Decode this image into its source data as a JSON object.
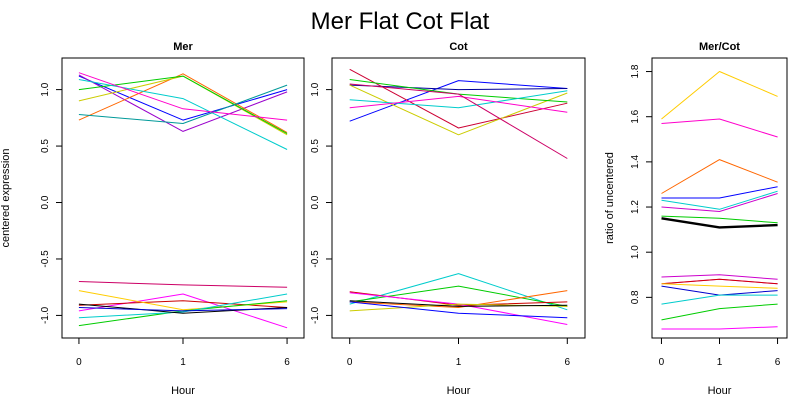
{
  "figure": {
    "title": "Mer Flat Cot Flat"
  },
  "chart_data": [
    {
      "type": "line",
      "title": "Mer",
      "xlabel": "Hour",
      "ylabel": "centered expression",
      "categories": [
        "0",
        "1",
        "6"
      ],
      "ylim": [
        -1.2,
        1.28
      ],
      "yticks": [
        -1.0,
        -0.5,
        0.0,
        0.5,
        1.0
      ],
      "ytick_labels": [
        "-1.0",
        "-0.5",
        "0.0",
        "0.5",
        "1.0"
      ],
      "series": [
        {
          "color": "#0000ff",
          "values": [
            1.12,
            0.73,
            1.0
          ]
        },
        {
          "color": "#9900cc",
          "values": [
            1.13,
            0.63,
            0.98
          ]
        },
        {
          "color": "#ff6600",
          "values": [
            0.73,
            1.14,
            0.62
          ]
        },
        {
          "color": "#cccc00",
          "values": [
            0.9,
            1.12,
            0.6
          ]
        },
        {
          "color": "#00cc00",
          "values": [
            1.0,
            1.12,
            0.61
          ]
        },
        {
          "color": "#00cccc",
          "values": [
            1.09,
            0.92,
            0.47
          ]
        },
        {
          "color": "#009999",
          "values": [
            0.78,
            0.7,
            1.04
          ]
        },
        {
          "color": "#ff00cc",
          "values": [
            1.15,
            0.83,
            0.73
          ]
        },
        {
          "color": "#cc0066",
          "values": [
            -0.7,
            -0.73,
            -0.75
          ]
        },
        {
          "color": "#ff00ff",
          "values": [
            -0.96,
            -0.81,
            -1.11
          ]
        },
        {
          "color": "#cc0000",
          "values": [
            -0.91,
            -0.87,
            -0.93
          ]
        },
        {
          "color": "#ffcc00",
          "values": [
            -0.78,
            -0.95,
            -0.88
          ]
        },
        {
          "color": "#00cc00",
          "values": [
            -1.09,
            -0.96,
            -0.87
          ]
        },
        {
          "color": "#00cccc",
          "values": [
            -1.02,
            -0.97,
            -0.81
          ]
        },
        {
          "color": "#000000",
          "values": [
            -0.9,
            -0.98,
            -0.93
          ]
        },
        {
          "color": "#0000cc",
          "values": [
            -0.93,
            -0.96,
            -0.94
          ]
        }
      ]
    },
    {
      "type": "line",
      "title": "Cot",
      "xlabel": "Hour",
      "categories": [
        "0",
        "1",
        "6"
      ],
      "ylim": [
        -1.2,
        1.28
      ],
      "yticks": [
        -1.0,
        -0.5,
        0.0,
        0.5,
        1.0
      ],
      "ytick_labels": [
        "-1.0",
        "-0.5",
        "0.0",
        "0.5",
        "1.0"
      ],
      "series": [
        {
          "color": "#0000ff",
          "values": [
            0.72,
            1.08,
            1.01
          ]
        },
        {
          "color": "#000099",
          "values": [
            1.04,
            1.0,
            1.01
          ]
        },
        {
          "color": "#cc0033",
          "values": [
            1.18,
            0.66,
            0.88
          ]
        },
        {
          "color": "#cccc00",
          "values": [
            1.04,
            0.6,
            0.97
          ]
        },
        {
          "color": "#00cc00",
          "values": [
            1.09,
            0.96,
            0.89
          ]
        },
        {
          "color": "#00cccc",
          "values": [
            0.91,
            0.84,
            0.99
          ]
        },
        {
          "color": "#ff00cc",
          "values": [
            0.84,
            0.94,
            0.8
          ]
        },
        {
          "color": "#cc0066",
          "values": [
            1.05,
            0.96,
            0.39
          ]
        },
        {
          "color": "#00cccc",
          "values": [
            -0.9,
            -0.63,
            -0.95
          ]
        },
        {
          "color": "#00cc00",
          "values": [
            -0.88,
            -0.74,
            -0.92
          ]
        },
        {
          "color": "#ff6600",
          "values": [
            -0.88,
            -0.93,
            -0.78
          ]
        },
        {
          "color": "#cc0000",
          "values": [
            -0.79,
            -0.91,
            -0.88
          ]
        },
        {
          "color": "#ff00ff",
          "values": [
            -0.8,
            -0.9,
            -1.08
          ]
        },
        {
          "color": "#cccc00",
          "values": [
            -0.96,
            -0.9,
            -0.92
          ]
        },
        {
          "color": "#0000ff",
          "values": [
            -0.88,
            -0.98,
            -1.02
          ]
        },
        {
          "color": "#000000",
          "values": [
            -0.87,
            -0.92,
            -0.91
          ]
        }
      ]
    },
    {
      "type": "line",
      "title": "Mer/Cot",
      "xlabel": "Hour",
      "ylabel": "ratio of uncentered",
      "categories": [
        "0",
        "1",
        "6"
      ],
      "ylim": [
        0.62,
        1.86
      ],
      "yticks": [
        0.8,
        1.0,
        1.2,
        1.4,
        1.6,
        1.8
      ],
      "ytick_labels": [
        "0.8",
        "1.0",
        "1.2",
        "1.4",
        "1.6",
        "1.8"
      ],
      "series": [
        {
          "color": "#ffcc00",
          "values": [
            1.59,
            1.8,
            1.69
          ]
        },
        {
          "color": "#ff00cc",
          "values": [
            1.57,
            1.59,
            1.51
          ]
        },
        {
          "color": "#ff6600",
          "values": [
            1.26,
            1.41,
            1.31
          ]
        },
        {
          "color": "#0000ff",
          "values": [
            1.24,
            1.24,
            1.29
          ]
        },
        {
          "color": "#00cccc",
          "values": [
            1.23,
            1.19,
            1.27
          ]
        },
        {
          "color": "#cc00cc",
          "values": [
            1.2,
            1.18,
            1.26
          ]
        },
        {
          "color": "#00cc00",
          "values": [
            1.16,
            1.15,
            1.13
          ]
        },
        {
          "color": "#000000",
          "width": 2.4,
          "values": [
            1.15,
            1.11,
            1.12
          ]
        },
        {
          "color": "#cc00cc",
          "values": [
            0.89,
            0.9,
            0.88
          ]
        },
        {
          "color": "#ff00ff",
          "values": [
            0.86,
            0.88,
            0.86
          ]
        },
        {
          "color": "#cc0000",
          "values": [
            0.86,
            0.88,
            0.86
          ]
        },
        {
          "color": "#ffcc00",
          "values": [
            0.86,
            0.85,
            0.84
          ]
        },
        {
          "color": "#0000cc",
          "values": [
            0.85,
            0.81,
            0.83
          ]
        },
        {
          "color": "#00cccc",
          "values": [
            0.77,
            0.81,
            0.81
          ]
        },
        {
          "color": "#00cc00",
          "values": [
            0.7,
            0.75,
            0.77
          ]
        },
        {
          "color": "#ff00ff",
          "values": [
            0.66,
            0.66,
            0.67
          ]
        }
      ]
    }
  ]
}
